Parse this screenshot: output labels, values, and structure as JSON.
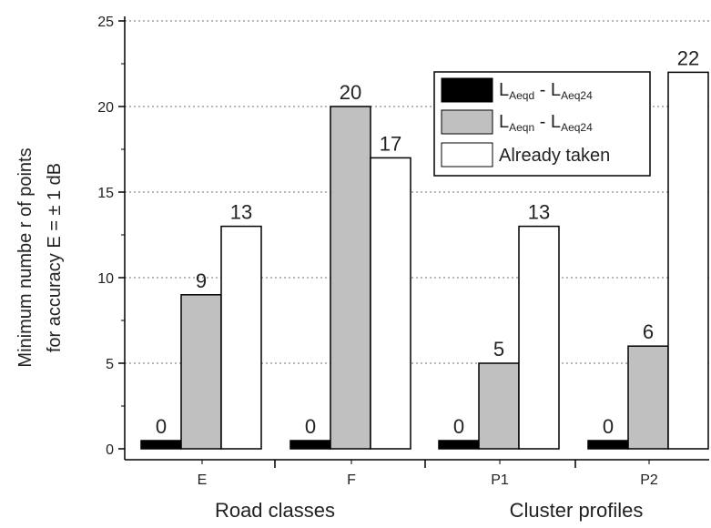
{
  "chart_data": {
    "type": "bar",
    "categories": [
      "E",
      "F",
      "P1",
      "P2"
    ],
    "group_labels": [
      "Road classes",
      "Cluster profiles"
    ],
    "ylabel_line1": "Minimum numbe r of points",
    "ylabel_line2": "for accuracy E = ± 1 dB",
    "ylim": [
      0,
      25
    ],
    "yticks": [
      0,
      5,
      10,
      15,
      20,
      25
    ],
    "grid": "horizontal dotted",
    "legend_position": "top-right",
    "series": [
      {
        "name": "LAeqd - LAeq24",
        "name_main": "L",
        "name_sub1": "Aeqd",
        "name_mid": " - L",
        "name_sub2": "Aeq24",
        "color": "#000000",
        "values": [
          0,
          0,
          0,
          0
        ]
      },
      {
        "name": "LAeqn - LAeq24",
        "name_main": "L",
        "name_sub1": "Aeqn",
        "name_mid": " - L",
        "name_sub2": "Aeq24",
        "color": "#c0c0c0",
        "values": [
          9,
          20,
          5,
          6
        ]
      },
      {
        "name": "Already taken",
        "color": "#ffffff",
        "values": [
          13,
          17,
          13,
          22
        ]
      }
    ]
  }
}
